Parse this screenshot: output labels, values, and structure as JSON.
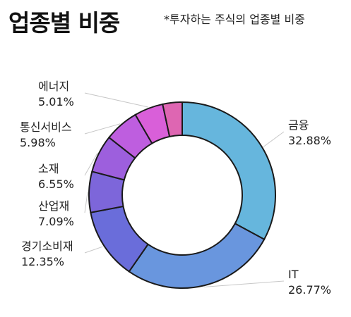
{
  "header": {
    "title": "업종별 비중",
    "subtitle": "*투자하는 주식의 업종별 비중"
  },
  "chart_data": {
    "type": "pie",
    "title": "업종별 비중",
    "subtitle": "*투자하는 주식의 업종별 비중",
    "categories": [
      "금융",
      "IT",
      "경기소비재",
      "산업재",
      "소재",
      "통신서비스",
      "에너지",
      ""
    ],
    "values": [
      32.88,
      26.77,
      12.35,
      7.09,
      6.55,
      5.98,
      5.01,
      3.37
    ],
    "labels": [
      "32.88%",
      "26.77%",
      "12.35%",
      "7.09%",
      "6.55%",
      "5.98%",
      "5.01%",
      ""
    ],
    "colors": [
      "#66B6DD",
      "#6996DE",
      "#6A6DDA",
      "#7D66DA",
      "#9D5FDD",
      "#BE5EDF",
      "#D95FD9",
      "#DE66B2"
    ],
    "hole": true,
    "legend": "none"
  }
}
